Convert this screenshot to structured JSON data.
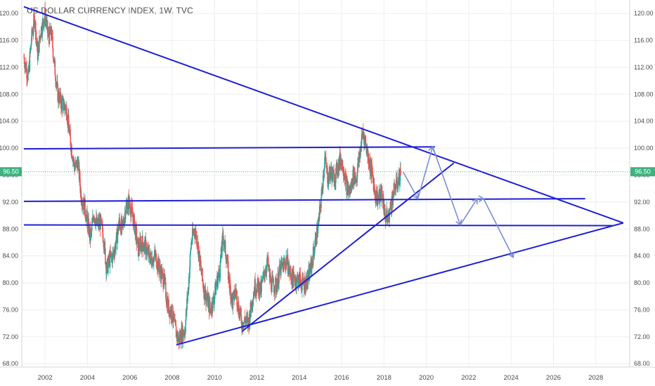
{
  "chart_data": {
    "title": "US DOLLAR CURRENCY INDEX, 1W, TVC",
    "type": "line",
    "subtype": "candlestick-weekly-with-trendlines",
    "x_ticks": [
      "2002",
      "2004",
      "2006",
      "2008",
      "2010",
      "2012",
      "2014",
      "2016",
      "2018",
      "2020",
      "2022",
      "2024",
      "2026",
      "2028"
    ],
    "y_ticks": [
      "68.00",
      "72.00",
      "76.00",
      "80.00",
      "84.00",
      "88.00",
      "92.00",
      "96.00",
      "100.00",
      "104.00",
      "108.00",
      "112.00",
      "116.00",
      "120.00"
    ],
    "y_range": [
      67.5,
      122
    ],
    "x_range": [
      2000.9,
      2029.6
    ],
    "grid": true,
    "last_price": "96.50",
    "last_price_value": 96.5,
    "colors": {
      "up": "#26a69a",
      "down": "#ef5350",
      "trendline": "#1f1fd6",
      "projection": "#7b8ed6",
      "price_tag": "#3fb27f",
      "grid": "#eeeeee",
      "axis_text": "#4a4a4a"
    },
    "price_path": [
      [
        2001.0,
        113.5
      ],
      [
        2001.2,
        110.5
      ],
      [
        2001.35,
        116
      ],
      [
        2001.5,
        119.5
      ],
      [
        2001.65,
        114
      ],
      [
        2001.8,
        117.5
      ],
      [
        2002.0,
        119.8
      ],
      [
        2002.15,
        116.5
      ],
      [
        2002.3,
        117
      ],
      [
        2002.45,
        112
      ],
      [
        2002.6,
        108
      ],
      [
        2002.8,
        106.5
      ],
      [
        2003.0,
        106
      ],
      [
        2003.2,
        101
      ],
      [
        2003.4,
        97
      ],
      [
        2003.55,
        98
      ],
      [
        2003.7,
        93
      ],
      [
        2003.85,
        91.5
      ],
      [
        2004.0,
        89
      ],
      [
        2004.15,
        86.5
      ],
      [
        2004.3,
        90.5
      ],
      [
        2004.45,
        88.5
      ],
      [
        2004.6,
        89
      ],
      [
        2004.75,
        87
      ],
      [
        2004.9,
        82
      ],
      [
        2005.05,
        83.5
      ],
      [
        2005.2,
        84
      ],
      [
        2005.35,
        86
      ],
      [
        2005.5,
        89
      ],
      [
        2005.65,
        88
      ],
      [
        2005.8,
        91
      ],
      [
        2005.95,
        92
      ],
      [
        2006.1,
        90.5
      ],
      [
        2006.25,
        88
      ],
      [
        2006.4,
        85
      ],
      [
        2006.55,
        86
      ],
      [
        2006.7,
        85.5
      ],
      [
        2006.85,
        84.5
      ],
      [
        2007.0,
        83.5
      ],
      [
        2007.2,
        84
      ],
      [
        2007.4,
        82
      ],
      [
        2007.6,
        80.5
      ],
      [
        2007.8,
        76.5
      ],
      [
        2008.0,
        75.5
      ],
      [
        2008.15,
        73
      ],
      [
        2008.3,
        71.5
      ],
      [
        2008.45,
        72.5
      ],
      [
        2008.6,
        73
      ],
      [
        2008.75,
        79
      ],
      [
        2008.9,
        86
      ],
      [
        2009.05,
        88
      ],
      [
        2009.2,
        86
      ],
      [
        2009.35,
        82
      ],
      [
        2009.5,
        79
      ],
      [
        2009.65,
        77.5
      ],
      [
        2009.8,
        76
      ],
      [
        2009.95,
        77.5
      ],
      [
        2010.1,
        80
      ],
      [
        2010.25,
        82
      ],
      [
        2010.4,
        87
      ],
      [
        2010.55,
        84
      ],
      [
        2010.7,
        80
      ],
      [
        2010.85,
        77
      ],
      [
        2011.0,
        79
      ],
      [
        2011.15,
        76
      ],
      [
        2011.3,
        74
      ],
      [
        2011.45,
        74.5
      ],
      [
        2011.6,
        74
      ],
      [
        2011.75,
        77
      ],
      [
        2011.9,
        79.5
      ],
      [
        2012.05,
        79.5
      ],
      [
        2012.2,
        79
      ],
      [
        2012.35,
        81.5
      ],
      [
        2012.5,
        83
      ],
      [
        2012.65,
        80
      ],
      [
        2012.8,
        79.5
      ],
      [
        2012.95,
        79.8
      ],
      [
        2013.1,
        82
      ],
      [
        2013.25,
        82.5
      ],
      [
        2013.4,
        83.5
      ],
      [
        2013.55,
        81.5
      ],
      [
        2013.7,
        80.5
      ],
      [
        2013.85,
        80.5
      ],
      [
        2014.0,
        80.5
      ],
      [
        2014.15,
        79.8
      ],
      [
        2014.3,
        80
      ],
      [
        2014.45,
        81
      ],
      [
        2014.6,
        83
      ],
      [
        2014.75,
        86
      ],
      [
        2014.9,
        88.5
      ],
      [
        2015.05,
        93
      ],
      [
        2015.2,
        98.5
      ],
      [
        2015.35,
        95.5
      ],
      [
        2015.5,
        96.5
      ],
      [
        2015.65,
        95.5
      ],
      [
        2015.8,
        97
      ],
      [
        2015.95,
        98.5
      ],
      [
        2016.1,
        97
      ],
      [
        2016.25,
        94
      ],
      [
        2016.4,
        93.5
      ],
      [
        2016.55,
        96
      ],
      [
        2016.7,
        95.5
      ],
      [
        2016.85,
        99
      ],
      [
        2017.0,
        102.5
      ],
      [
        2017.15,
        100.5
      ],
      [
        2017.3,
        98
      ],
      [
        2017.45,
        96
      ],
      [
        2017.6,
        93
      ],
      [
        2017.75,
        92.5
      ],
      [
        2017.9,
        93.5
      ],
      [
        2018.05,
        90
      ],
      [
        2018.2,
        89.5
      ],
      [
        2018.35,
        92
      ],
      [
        2018.5,
        94
      ],
      [
        2018.65,
        95
      ],
      [
        2018.8,
        96.5
      ]
    ],
    "trendlines": [
      {
        "from": [
          2001.0,
          121.0
        ],
        "to": [
          2029.3,
          88.9
        ]
      },
      {
        "from": [
          2008.2,
          70.8
        ],
        "to": [
          2029.3,
          88.9
        ]
      },
      {
        "from": [
          2011.3,
          72.8
        ],
        "to": [
          2021.3,
          97.8
        ]
      },
      {
        "from": [
          2001.0,
          99.9
        ],
        "to": [
          2020.4,
          100.2
        ]
      },
      {
        "from": [
          2001.0,
          92.1
        ],
        "to": [
          2027.5,
          92.5
        ]
      },
      {
        "from": [
          2001.0,
          88.6
        ],
        "to": [
          2028.8,
          88.5
        ]
      }
    ],
    "projections": [
      [
        2018.9,
        96.5
      ],
      [
        2019.6,
        92.5
      ],
      [
        2020.3,
        100.2
      ],
      [
        2021.6,
        88.6
      ],
      [
        2022.4,
        92.5
      ],
      [
        2022.7,
        92.5
      ],
      [
        2024.1,
        83.8
      ]
    ]
  }
}
